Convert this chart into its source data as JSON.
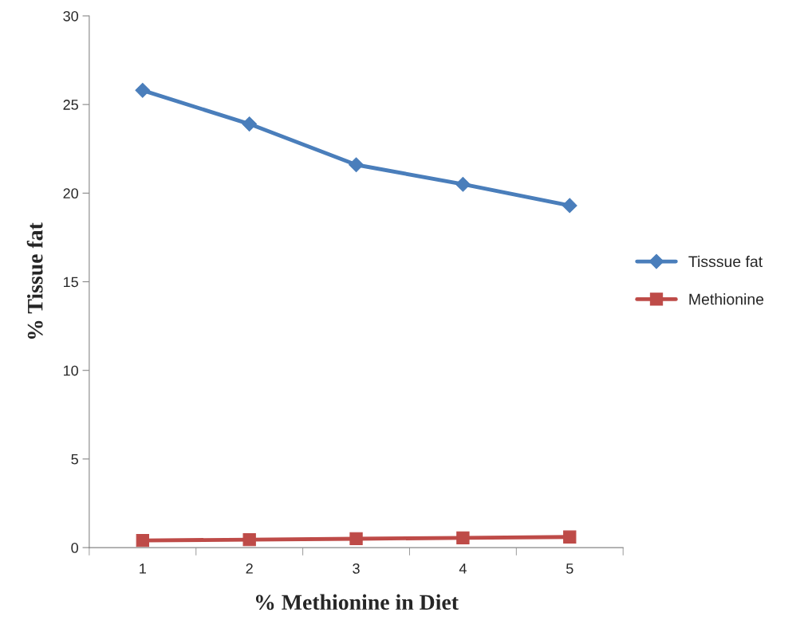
{
  "chart_data": {
    "type": "line",
    "xlabel": "% Methionine in Diet",
    "ylabel": "% Tissue fat",
    "categories": [
      "1",
      "2",
      "3",
      "4",
      "5"
    ],
    "series": [
      {
        "name": "Tisssue fat",
        "color": "#4a7ebb",
        "marker": "diamond",
        "values": [
          25.8,
          23.9,
          21.6,
          20.5,
          19.3
        ]
      },
      {
        "name": "Methionine",
        "color": "#be4b48",
        "marker": "square",
        "values": [
          0.4,
          0.45,
          0.5,
          0.55,
          0.6
        ]
      }
    ],
    "ylim": [
      0,
      30
    ],
    "yticks": [
      0,
      5,
      10,
      15,
      20,
      25,
      30
    ],
    "grid": false,
    "legend": "right"
  }
}
